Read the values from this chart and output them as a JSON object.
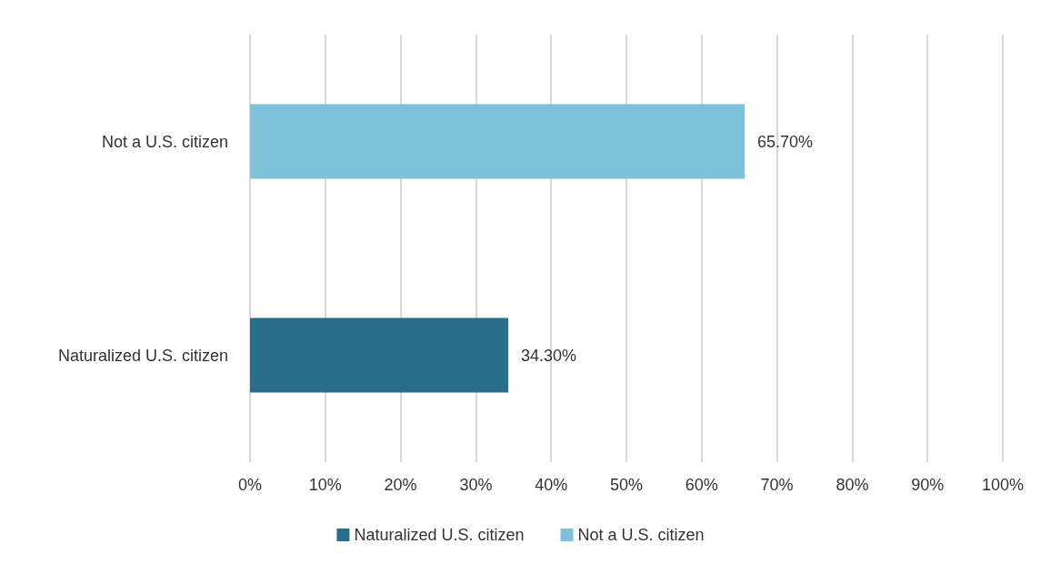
{
  "chart_data": {
    "type": "bar",
    "orientation": "horizontal",
    "stacked": true,
    "categories": [
      "Not a U.S. citizen",
      "Naturalized U.S. citizen"
    ],
    "series": [
      {
        "name": "Naturalized U.S. citizen",
        "color": "#286e8a",
        "values": [
          null,
          34.3
        ],
        "value_labels": [
          null,
          "34.30%"
        ]
      },
      {
        "name": "Not a U.S. citizen",
        "color": "#7fc1db",
        "values": [
          65.7,
          null
        ],
        "value_labels": [
          "65.70%",
          null
        ]
      }
    ],
    "xlim": [
      0,
      100
    ],
    "xticks": [
      {
        "value": 0,
        "label": "0%"
      },
      {
        "value": 10,
        "label": "10%"
      },
      {
        "value": 20,
        "label": "20%"
      },
      {
        "value": 30,
        "label": "30%"
      },
      {
        "value": 40,
        "label": "40%"
      },
      {
        "value": 50,
        "label": "50%"
      },
      {
        "value": 60,
        "label": "60%"
      },
      {
        "value": 70,
        "label": "70%"
      },
      {
        "value": 80,
        "label": "80%"
      },
      {
        "value": 90,
        "label": "90%"
      },
      {
        "value": 100,
        "label": "100%"
      }
    ],
    "grid": "x",
    "legend": "bottom"
  }
}
